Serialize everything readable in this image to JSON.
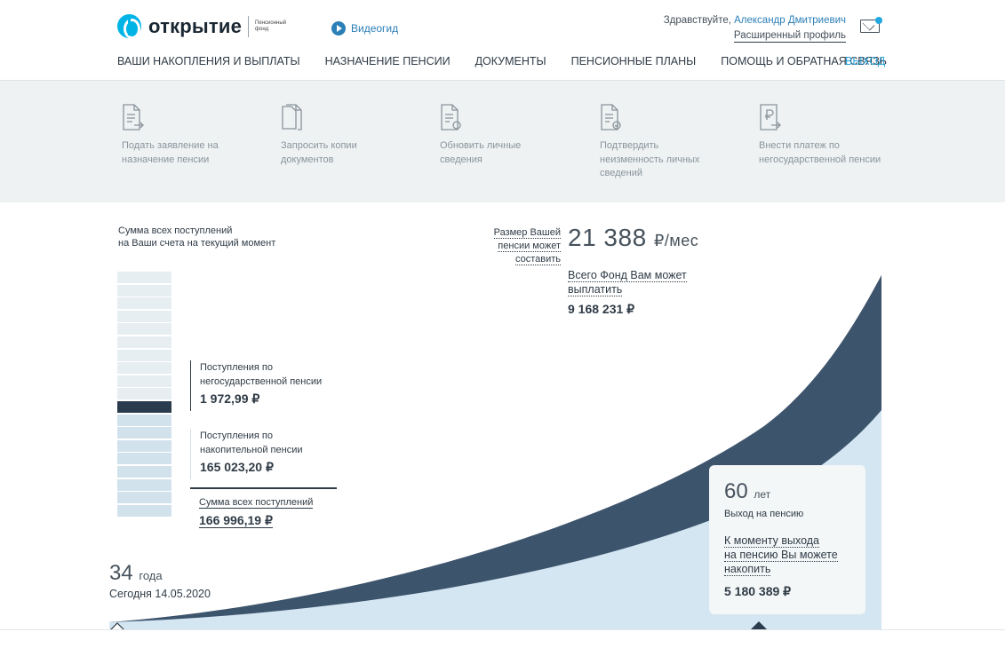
{
  "header": {
    "logo_text": "открытие",
    "logo_sub": "Пенсионный фонд",
    "video_label": "Видеогид",
    "greeting_prefix": "Здравствуйте, ",
    "user_name": "Александр Дмитриевич",
    "profile_link": "Расширенный профиль"
  },
  "nav": {
    "items": [
      "ВАШИ НАКОПЛЕНИЯ И ВЫПЛАТЫ",
      "НАЗНАЧЕНИЕ ПЕНСИИ",
      "ДОКУМЕНТЫ",
      "ПЕНСИОННЫЕ ПЛАНЫ",
      "ПОМОЩЬ И ОБРАТНАЯ СВЯЗЬ"
    ],
    "exit": "ВЫХОД"
  },
  "actions": [
    {
      "label": "Подать заявление на назначение пенсии",
      "icon": "document-arrow-icon"
    },
    {
      "label": "Запросить копии документов",
      "icon": "copy-document-icon"
    },
    {
      "label": "Обновить личные сведения",
      "icon": "document-refresh-icon"
    },
    {
      "label": "Подтвердить неизменность личных сведений",
      "icon": "document-check-icon"
    },
    {
      "label": "Внести платеж по негосударственной пенсии",
      "icon": "ruble-document-icon"
    }
  ],
  "summary": {
    "title_line1": "Сумма всех поступлений",
    "title_line2": "на Ваши счета на текущий момент",
    "nongov_label": "Поступления по негосударственной пенсии",
    "nongov_value": "1 972,99 ₽",
    "funded_label": "Поступления по накопительной пенсии",
    "funded_value": "165 023,20 ₽",
    "total_label": "Сумма всех поступлений",
    "total_value": "166 996,19 ₽"
  },
  "pension": {
    "label_line1": "Размер Вашей",
    "label_line2": "пенсии может",
    "label_line3": "составить",
    "value": "21 388",
    "unit": "₽/мес",
    "fund_label_line1": "Всего Фонд Вам может",
    "fund_label_line2": "выплатить",
    "fund_value": "9 168 231 ₽"
  },
  "timeline": {
    "age_now": "34",
    "age_now_unit": "года",
    "today": "Сегодня 14.05.2020",
    "age_retire": "60",
    "age_retire_unit": "лет",
    "retire_sub": "Выход на пенсию",
    "accum_line1": "К моменту выхода",
    "accum_line2": "на пенсию Вы можете",
    "accum_line3": "накопить",
    "accum_value": "5 180 389 ₽"
  },
  "colors": {
    "accent": "#2ca3db",
    "dark_area": "#2b3b4e",
    "light_area": "#d4e6f2"
  }
}
